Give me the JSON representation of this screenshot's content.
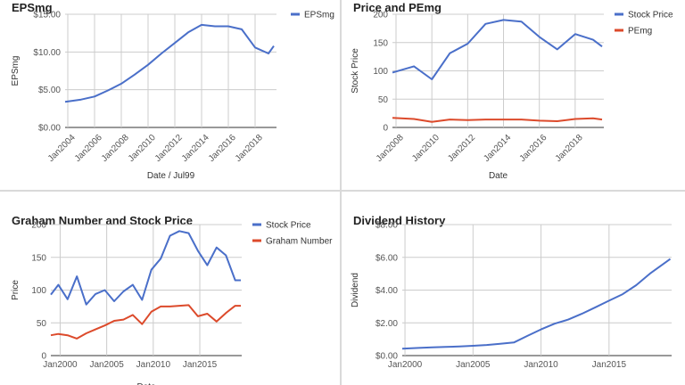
{
  "chart_data": [
    {
      "type": "line",
      "title": "EPSmg",
      "xlabel": "Date / Jul99",
      "ylabel": "EPSmg",
      "x_ticks": [
        "Jan2004",
        "Jan2006",
        "Jan2008",
        "Jan2010",
        "Jan2012",
        "Jan2014",
        "Jan2016",
        "Jan2018"
      ],
      "y_ticks": [
        "$0.00",
        "$5.00",
        "$10.00",
        "$15.00"
      ],
      "ylim": [
        0,
        15
      ],
      "xlim": [
        2003.8,
        2019.6
      ],
      "legend_position": "top-right",
      "series": [
        {
          "name": "EPSmg",
          "color": "#4a6fc9",
          "x": [
            2003.8,
            2005.0,
            2006.0,
            2007.0,
            2008.0,
            2009.0,
            2010.0,
            2011.0,
            2012.0,
            2013.0,
            2014.0,
            2015.0,
            2016.0,
            2017.0,
            2018.0,
            2019.0,
            2019.4
          ],
          "y": [
            3.4,
            3.7,
            4.1,
            4.9,
            5.8,
            7.0,
            8.3,
            9.8,
            11.2,
            12.6,
            13.6,
            13.4,
            13.4,
            13.0,
            10.6,
            9.8,
            10.8
          ]
        }
      ]
    },
    {
      "type": "line",
      "title": "Price and PEmg",
      "xlabel": "Date",
      "ylabel": "Stock Price",
      "x_ticks": [
        "Jan2008",
        "Jan2010",
        "Jan2012",
        "Jan2014",
        "Jan2016",
        "Jan2018"
      ],
      "y_ticks": [
        "0",
        "50",
        "100",
        "150",
        "200"
      ],
      "ylim": [
        0,
        200
      ],
      "xlim": [
        2007.8,
        2019.6
      ],
      "legend_position": "top-right",
      "series": [
        {
          "name": "Stock Price",
          "color": "#4a6fc9",
          "x": [
            2007.8,
            2009.0,
            2010.0,
            2011.0,
            2012.0,
            2013.0,
            2014.0,
            2015.0,
            2016.0,
            2017.0,
            2018.0,
            2019.0,
            2019.5
          ],
          "y": [
            97,
            108,
            85,
            131,
            148,
            183,
            190,
            187,
            160,
            138,
            165,
            155,
            143
          ]
        },
        {
          "name": "PEmg",
          "color": "#dc4a2b",
          "x": [
            2007.8,
            2009.0,
            2010.0,
            2011.0,
            2012.0,
            2013.0,
            2014.0,
            2015.0,
            2016.0,
            2017.0,
            2018.0,
            2019.0,
            2019.5
          ],
          "y": [
            17,
            15,
            10,
            14,
            13,
            14,
            14,
            14,
            12,
            11,
            15,
            16,
            14
          ]
        }
      ]
    },
    {
      "type": "line",
      "title": "Graham Number and Stock Price",
      "xlabel": "Date",
      "ylabel": "Price",
      "x_ticks": [
        "Jan2000",
        "Jan2005",
        "Jan2010",
        "Jan2015"
      ],
      "y_ticks": [
        "0",
        "50",
        "100",
        "150",
        "200"
      ],
      "ylim": [
        0,
        200
      ],
      "xlim": [
        1999.0,
        2019.5
      ],
      "legend_position": "top-right",
      "series": [
        {
          "name": "Stock Price",
          "color": "#4a6fc9",
          "x": [
            1999.0,
            1999.8,
            2000.8,
            2001.8,
            2002.8,
            2003.8,
            2004.8,
            2005.8,
            2006.8,
            2007.8,
            2008.8,
            2009.8,
            2010.8,
            2011.8,
            2012.8,
            2013.8,
            2014.8,
            2015.8,
            2016.8,
            2017.8,
            2018.8,
            2019.4
          ],
          "y": [
            93,
            108,
            86,
            121,
            78,
            94,
            100,
            83,
            98,
            108,
            85,
            131,
            148,
            183,
            190,
            187,
            160,
            138,
            165,
            153,
            115,
            115
          ]
        },
        {
          "name": "Graham Number",
          "color": "#dc4a2b",
          "x": [
            1999.0,
            1999.8,
            2000.8,
            2001.8,
            2002.8,
            2003.8,
            2004.8,
            2005.8,
            2006.8,
            2007.8,
            2008.8,
            2009.8,
            2010.8,
            2011.8,
            2012.8,
            2013.8,
            2014.8,
            2015.8,
            2016.8,
            2017.8,
            2018.8,
            2019.4
          ],
          "y": [
            31,
            33,
            31,
            26,
            34,
            40,
            46,
            53,
            55,
            62,
            48,
            67,
            75,
            75,
            76,
            77,
            60,
            64,
            52,
            65,
            76,
            76
          ]
        }
      ]
    },
    {
      "type": "line",
      "title": "Dividend History",
      "xlabel": "",
      "ylabel": "Dividend",
      "x_ticks": [
        "Jan2000",
        "Jan2005",
        "Jan2010",
        "Jan2015"
      ],
      "y_ticks": [
        "$0.00",
        "$2.00",
        "$4.00",
        "$6.00",
        "$8.00"
      ],
      "ylim": [
        0,
        8
      ],
      "xlim": [
        1999.8,
        2019.6
      ],
      "legend_position": "none",
      "series": [
        {
          "name": "",
          "color": "#4a6fc9",
          "x": [
            1999.8,
            2001.0,
            2002.0,
            2003.0,
            2004.0,
            2005.0,
            2006.0,
            2007.0,
            2008.0,
            2009.0,
            2010.0,
            2011.0,
            2012.0,
            2013.0,
            2014.0,
            2015.0,
            2016.0,
            2017.0,
            2018.0,
            2019.5
          ],
          "y": [
            0.42,
            0.47,
            0.5,
            0.53,
            0.56,
            0.6,
            0.65,
            0.72,
            0.8,
            1.2,
            1.6,
            1.95,
            2.2,
            2.55,
            2.95,
            3.35,
            3.75,
            4.3,
            5.0,
            5.9
          ]
        }
      ]
    }
  ]
}
